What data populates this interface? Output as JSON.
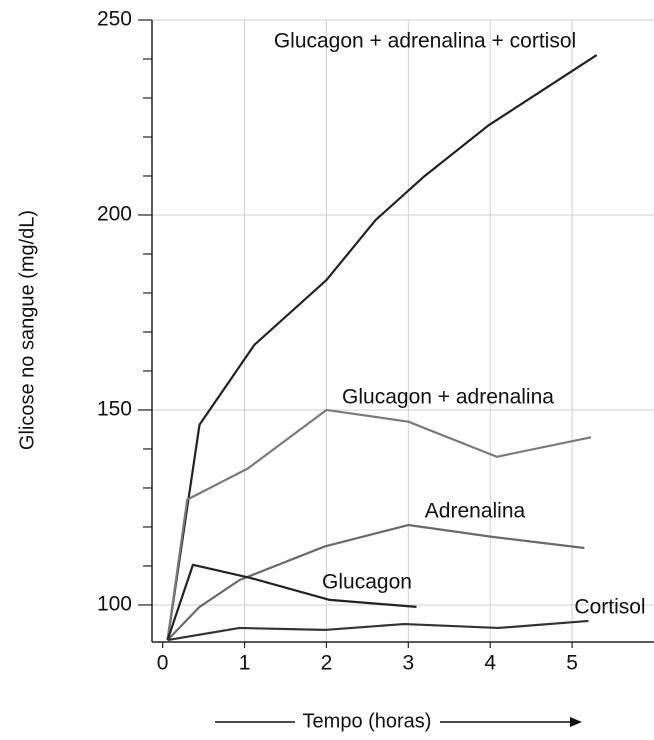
{
  "chart_data": {
    "type": "line",
    "y_label": "Glicose no sangue (mg/dL)",
    "x_label": "Tempo (horas)",
    "xlim": [
      -0.13,
      6
    ],
    "ylim": [
      90.5,
      250
    ],
    "xticks": [
      0,
      1,
      2,
      3,
      4,
      5
    ],
    "yticks": [
      100,
      150,
      200,
      250
    ],
    "yminorticks": [
      110,
      120,
      130,
      140,
      160,
      170,
      180,
      190,
      210,
      220,
      230,
      240
    ],
    "grid": true,
    "series": [
      {
        "name": "Glucagon + adrenalina + cortisol",
        "color": "#222222",
        "x": [
          0.06,
          0.45,
          1.12,
          2.0,
          2.6,
          3.2,
          3.98,
          5.3
        ],
        "values": [
          91,
          146.2,
          166.7,
          183.3,
          198.7,
          210,
          223,
          241
        ]
      },
      {
        "name": "Glucagon + adrenalina",
        "color": "#7a7a7a",
        "x": [
          0.06,
          0.3,
          1.04,
          2.0,
          3.0,
          4.08,
          5.23
        ],
        "values": [
          91,
          127,
          135,
          150,
          147,
          138,
          143
        ]
      },
      {
        "name": "Adrenalina",
        "color": "#6a6a6a",
        "x": [
          0.06,
          0.45,
          0.94,
          1.98,
          3.0,
          4.05,
          5.15
        ],
        "values": [
          91,
          99.5,
          106.4,
          115,
          120.5,
          117.4,
          114.6
        ]
      },
      {
        "name": "Glucagon",
        "color": "#222222",
        "x": [
          0.06,
          0.37,
          1.06,
          2.04,
          3.1
        ],
        "values": [
          91,
          110.3,
          107,
          101.3,
          99.5
        ]
      },
      {
        "name": "Cortisol",
        "color": "#333333",
        "x": [
          0.06,
          0.94,
          1.98,
          2.95,
          4.1,
          5.2
        ],
        "values": [
          91,
          94.1,
          93.6,
          95.1,
          94.1,
          95.9
        ]
      }
    ]
  }
}
